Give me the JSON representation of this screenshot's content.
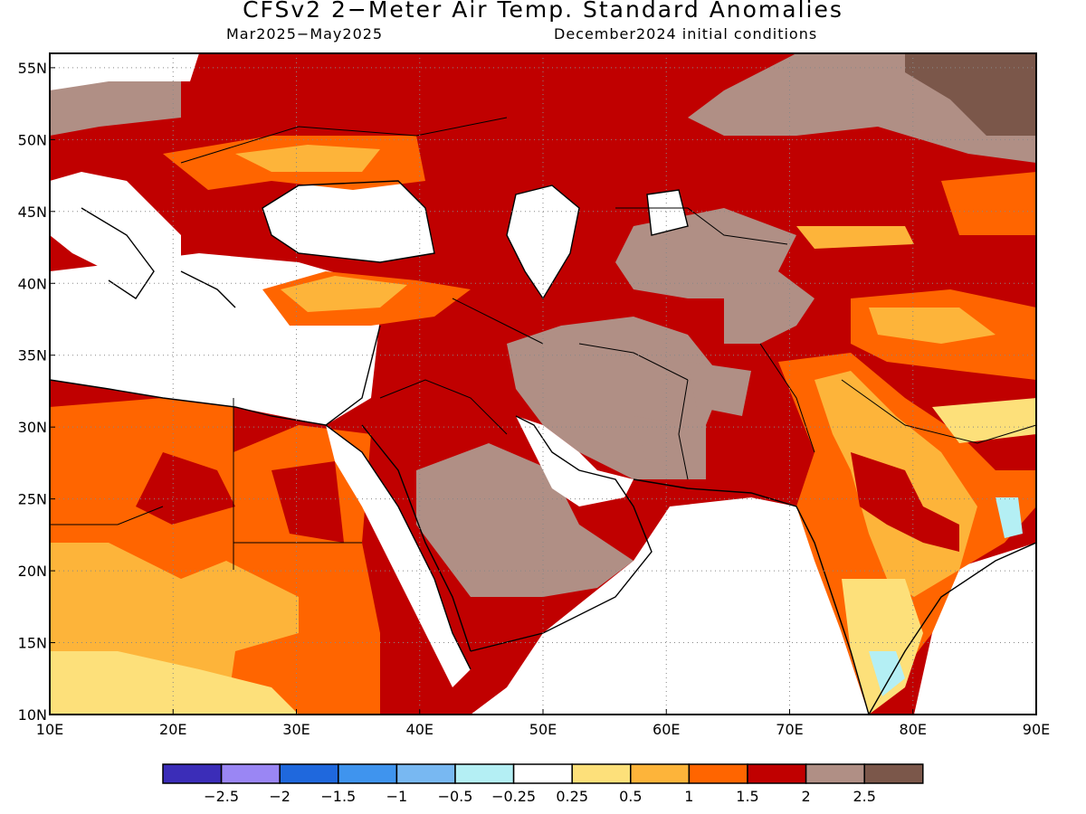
{
  "title": "CFSv2 2−Meter Air Temp. Standard Anomalies",
  "valid_period": "Mar2025−May2025",
  "initial_conditions": "December2024 initial conditions",
  "map": {
    "lon_range": [
      10,
      90
    ],
    "lat_range": [
      10,
      56
    ],
    "lon_ticks": [
      "10E",
      "20E",
      "30E",
      "40E",
      "50E",
      "60E",
      "70E",
      "80E",
      "90E"
    ],
    "lat_ticks": [
      "10N",
      "15N",
      "20N",
      "25N",
      "30N",
      "35N",
      "40N",
      "45N",
      "50N",
      "55N"
    ],
    "grid": "dotted"
  },
  "legend": {
    "colors": [
      "#3b2db8",
      "#9a86f4",
      "#1f68dd",
      "#3f94ee",
      "#78b8f2",
      "#b4eff4",
      "#ffffff",
      "#fde07a",
      "#fdb43a",
      "#ff6500",
      "#c00000",
      "#b08f85",
      "#7b574a"
    ],
    "labels": [
      "−2.5",
      "−2",
      "−1.5",
      "−1",
      "−0.5",
      "−0.25",
      "0.25",
      "0.5",
      "1",
      "1.5",
      "2",
      "2.5"
    ]
  },
  "chart_data": {
    "type": "heatmap",
    "title": "CFSv2 2−Meter Air Temp. Standard Anomalies",
    "subtitle": "Mar2025−May2025 / December2024 initial conditions",
    "xlabel": "",
    "ylabel": "",
    "xlim": [
      10,
      90
    ],
    "ylim": [
      10,
      56
    ],
    "x_ticks": [
      "10E",
      "20E",
      "30E",
      "40E",
      "50E",
      "60E",
      "70E",
      "80E",
      "90E"
    ],
    "y_ticks": [
      "10N",
      "15N",
      "20N",
      "25N",
      "30N",
      "35N",
      "40N",
      "45N",
      "50N",
      "55N"
    ],
    "colorbar_boundaries": [
      -2.5,
      -2,
      -1.5,
      -1,
      -0.5,
      -0.25,
      0.25,
      0.5,
      1,
      1.5,
      2,
      2.5
    ],
    "regions": [
      {
        "name": "background Middle East / N Africa / Europe",
        "value": 1.75
      },
      {
        "name": "NE Africa interior",
        "value": 1.25
      },
      {
        "name": "central Africa south",
        "value": 0.75
      },
      {
        "name": "Central Asia steppe",
        "value": 2.25
      },
      {
        "name": "Siberia far NE corner",
        "value": 2.75
      },
      {
        "name": "Arabian interior",
        "value": 2.25
      },
      {
        "name": "Iran plateau",
        "value": 2.25
      },
      {
        "name": "Afghanistan",
        "value": 2.25
      },
      {
        "name": "India",
        "value": 1.25
      },
      {
        "name": "S India",
        "value": 0.75
      },
      {
        "name": "Tibet / China west",
        "value": 1.25
      },
      {
        "name": "Turkey",
        "value": 0.75
      },
      {
        "name": "Sea / open water",
        "value": 0
      }
    ]
  }
}
